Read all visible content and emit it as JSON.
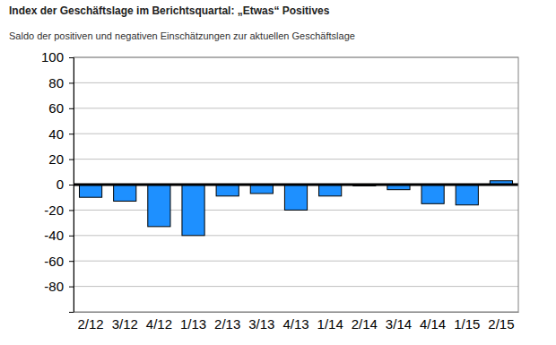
{
  "chart_data": {
    "type": "bar",
    "title": "Index der Geschäftslage im Berichtsquartal: „Etwas“ Positives",
    "subtitle": "Saldo der positiven und negativen Einschätzungen zur aktuellen Geschäftslage",
    "categories": [
      "2/12",
      "3/12",
      "4/12",
      "1/13",
      "2/13",
      "3/13",
      "4/13",
      "1/14",
      "2/14",
      "3/14",
      "4/14",
      "1/15",
      "2/15"
    ],
    "values": [
      -10,
      -13,
      -33,
      -40,
      -9,
      -7,
      -20,
      -9,
      -1,
      -4,
      -15,
      -16,
      3
    ],
    "color": "#1e90ff",
    "ylim": [
      -100,
      100
    ],
    "yticks": [
      -80,
      -60,
      -40,
      -20,
      0,
      20,
      40,
      60,
      80,
      100
    ],
    "grid": true
  }
}
